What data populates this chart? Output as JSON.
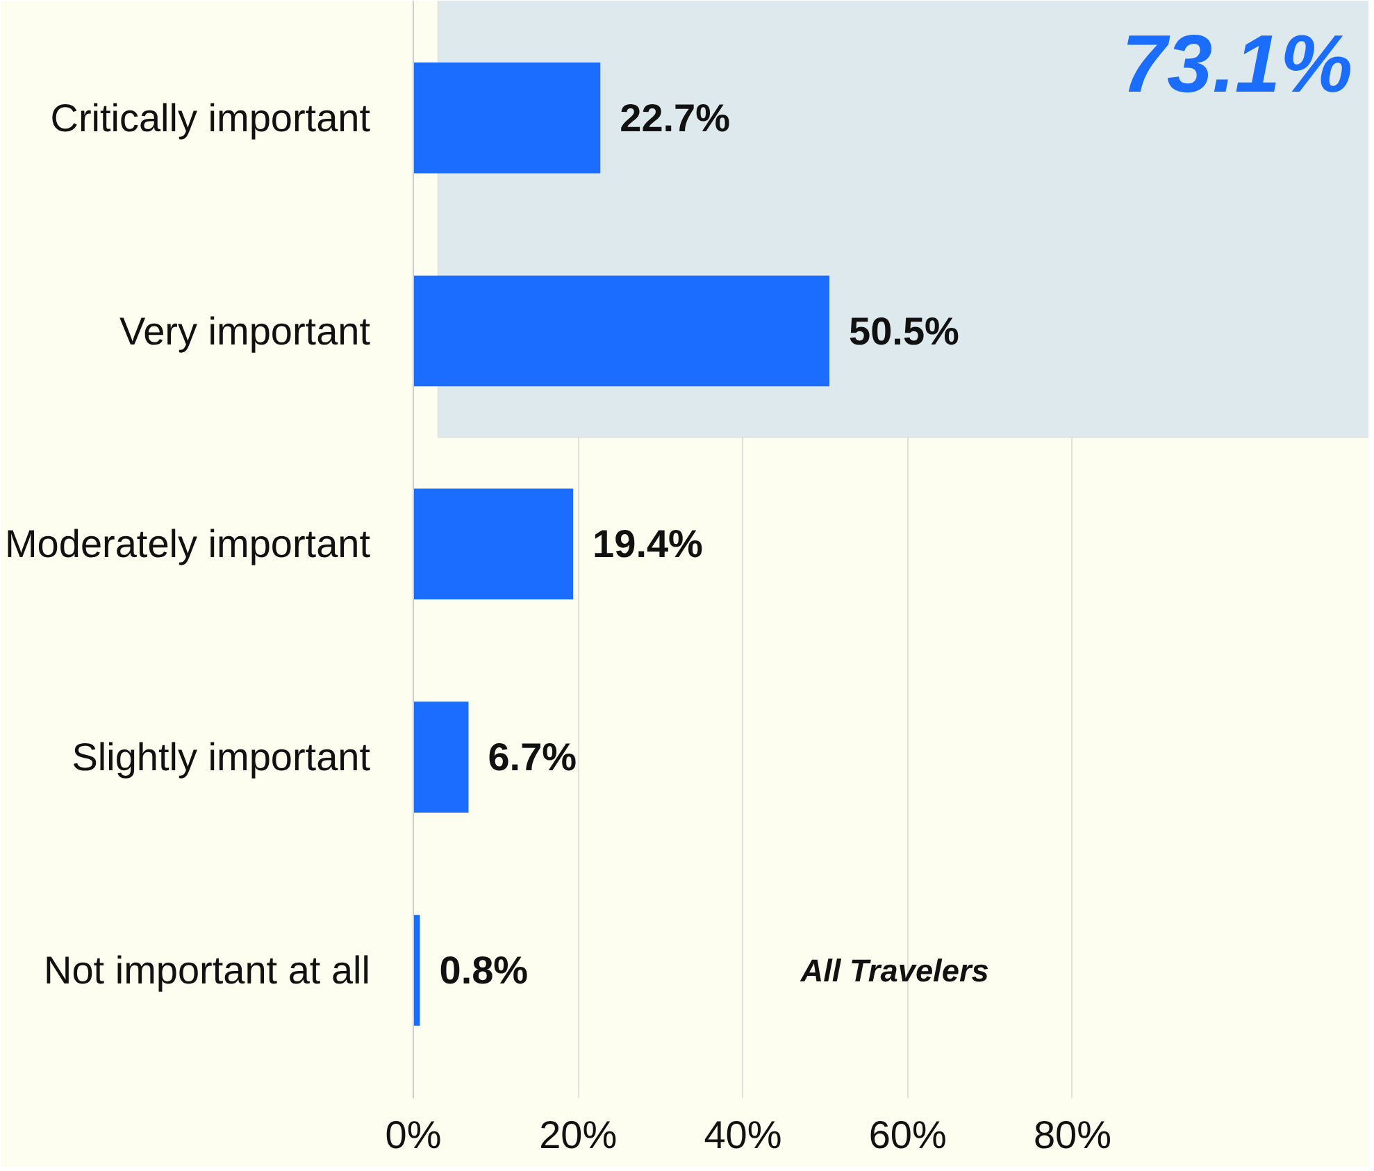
{
  "chart_data": {
    "type": "bar",
    "orientation": "horizontal",
    "categories": [
      "Critically important",
      "Very important",
      "Moderately important",
      "Slightly important",
      "Not important at all"
    ],
    "values": [
      22.7,
      50.5,
      19.4,
      6.7,
      0.8
    ],
    "color": "#1a6dff",
    "data_labels": true,
    "value_labels": [
      "22.7%",
      "50.5%",
      "19.4%",
      "6.7%",
      "0.8%"
    ],
    "xlim": [
      0,
      116
    ],
    "xticks": [
      {
        "value": 0,
        "label": "0%"
      },
      {
        "value": 20,
        "label": "20%"
      },
      {
        "value": 40,
        "label": "40%"
      },
      {
        "value": 60,
        "label": "60%"
      },
      {
        "value": 80,
        "label": "80%"
      }
    ],
    "grid": "x",
    "bands": [
      {
        "axis": "y",
        "from": "Critically important",
        "to": "Very important",
        "label": "73.1%",
        "color": "#dde9ec"
      }
    ],
    "annotations": [
      "All Travelers"
    ]
  }
}
